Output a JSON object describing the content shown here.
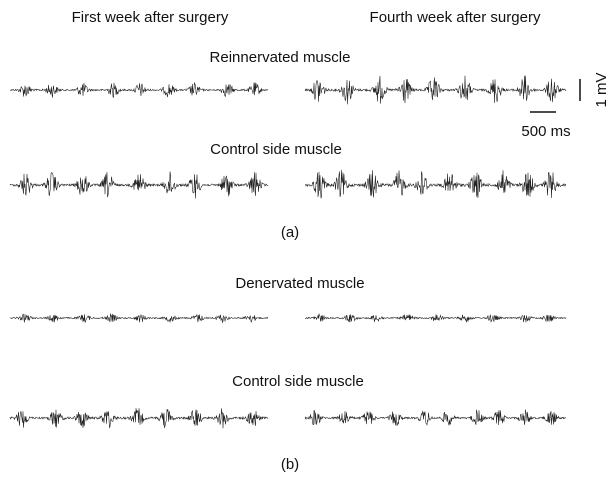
{
  "columns": [
    "First week after surgery",
    "Fourth week after surgery"
  ],
  "panels": [
    {
      "rows": [
        "Reinnervated muscle",
        "Control side muscle"
      ],
      "label": "(a)"
    },
    {
      "rows": [
        "Denervated muscle",
        "Control side muscle"
      ],
      "label": "(b)"
    }
  ],
  "scale_bar": {
    "voltage": "1 mV",
    "time": "500 ms"
  }
}
